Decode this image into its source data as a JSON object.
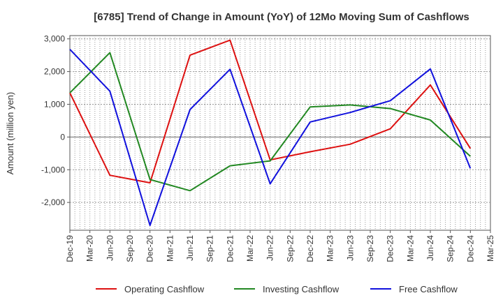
{
  "chart_data": {
    "type": "line",
    "title": "[6785]  Trend of Change in Amount (YoY) of 12Mo Moving Sum of Cashflows",
    "xlabel": "",
    "ylabel": "Amount (million yen)",
    "ylim": [
      -2850,
      3100
    ],
    "y_ticks": [
      3000,
      2000,
      1000,
      0,
      -1000,
      -2000
    ],
    "y_tick_labels": [
      "3,000",
      "2,000",
      "1,000",
      "0",
      "-1,000",
      "-2,000"
    ],
    "categories": [
      "Dec-19",
      "Mar-20",
      "Jun-20",
      "Sep-20",
      "Dec-20",
      "Mar-21",
      "Jun-21",
      "Sep-21",
      "Dec-21",
      "Mar-22",
      "Jun-22",
      "Sep-22",
      "Dec-22",
      "Mar-23",
      "Jun-23",
      "Sep-23",
      "Dec-23",
      "Mar-24",
      "Jun-24",
      "Sep-24",
      "Dec-24",
      "Mar-25"
    ],
    "series": [
      {
        "name": "Operating Cashflow",
        "color": "#dd1111",
        "points": [
          [
            0,
            1350
          ],
          [
            2,
            -1170
          ],
          [
            4,
            -1400
          ],
          [
            6,
            2500
          ],
          [
            8,
            2960
          ],
          [
            10,
            -700
          ],
          [
            12,
            -450
          ],
          [
            14,
            -220
          ],
          [
            16,
            250
          ],
          [
            18,
            1590
          ],
          [
            20,
            -350
          ]
        ]
      },
      {
        "name": "Investing Cashflow",
        "color": "#228822",
        "points": [
          [
            0,
            1350
          ],
          [
            2,
            2580
          ],
          [
            4,
            -1300
          ],
          [
            6,
            -1640
          ],
          [
            8,
            -880
          ],
          [
            10,
            -730
          ],
          [
            12,
            920
          ],
          [
            14,
            980
          ],
          [
            16,
            870
          ],
          [
            18,
            520
          ],
          [
            20,
            -590
          ]
        ]
      },
      {
        "name": "Free Cashflow",
        "color": "#1111dd",
        "points": [
          [
            0,
            2680
          ],
          [
            2,
            1400
          ],
          [
            4,
            -2700
          ],
          [
            6,
            840
          ],
          [
            8,
            2070
          ],
          [
            10,
            -1430
          ],
          [
            12,
            460
          ],
          [
            14,
            750
          ],
          [
            16,
            1110
          ],
          [
            18,
            2080
          ],
          [
            20,
            -960
          ]
        ]
      }
    ],
    "legend_position": "bottom",
    "grid": true
  }
}
